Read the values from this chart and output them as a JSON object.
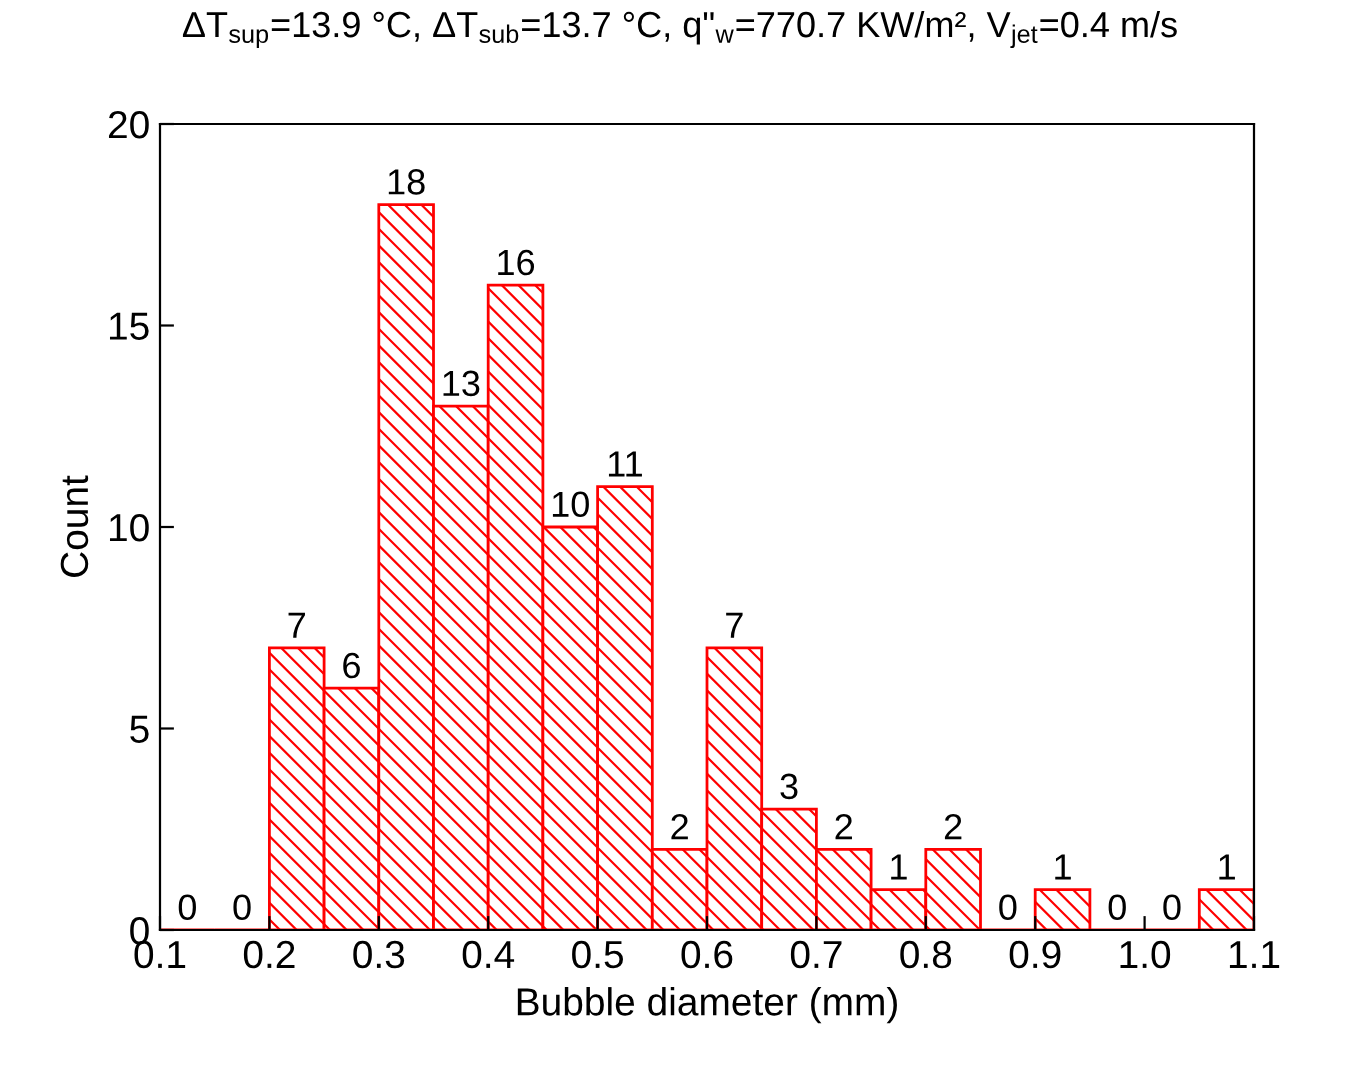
{
  "chart_data": {
    "type": "histogram",
    "title": "ΔT$_{sup}$=13.9 °C, ΔT$_{sub}$=13.7 °C, q\"$_{w}$=770.7 KW/m², V$_{jet}$=0.4 m/s",
    "xlabel": "Bubble diameter (mm)",
    "ylabel": "Count",
    "bins": [
      0.1,
      0.15,
      0.2,
      0.25,
      0.3,
      0.35,
      0.4,
      0.45,
      0.5,
      0.55,
      0.6,
      0.65,
      0.7,
      0.75,
      0.8,
      0.85,
      0.9,
      0.95,
      1.0,
      1.05,
      1.1
    ],
    "values": [
      0,
      0,
      7,
      6,
      18,
      13,
      16,
      10,
      11,
      2,
      7,
      3,
      2,
      1,
      2,
      0,
      1,
      0,
      0,
      1
    ],
    "color": "#ff0000",
    "xlim": [
      0.1,
      1.1
    ],
    "ylim": [
      0,
      20
    ],
    "xticks": [
      {
        "value": 0.1,
        "label": "0.1"
      },
      {
        "value": 0.2,
        "label": "0.2"
      },
      {
        "value": 0.3,
        "label": "0.3"
      },
      {
        "value": 0.4,
        "label": "0.4"
      },
      {
        "value": 0.5,
        "label": "0.5"
      },
      {
        "value": 0.6,
        "label": "0.6"
      },
      {
        "value": 0.7,
        "label": "0.7"
      },
      {
        "value": 0.8,
        "label": "0.8"
      },
      {
        "value": 0.9,
        "label": "0.9"
      },
      {
        "value": 1.0,
        "label": "1.0"
      },
      {
        "value": 1.1,
        "label": "1.1"
      }
    ],
    "yticks": [
      0,
      5,
      10,
      15,
      20
    ],
    "data_labels": true,
    "grid": false,
    "legend": false
  }
}
